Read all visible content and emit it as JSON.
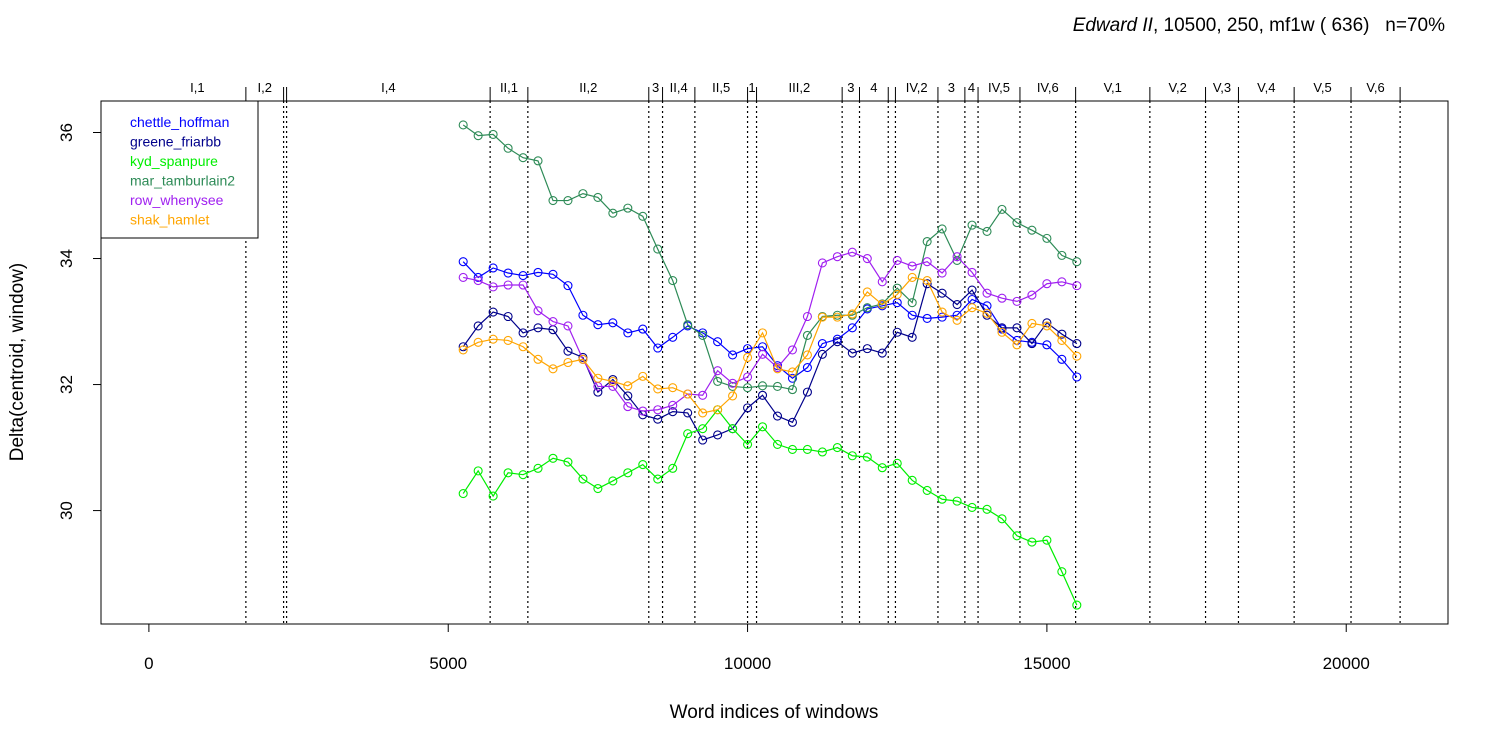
{
  "chart_data": {
    "type": "line",
    "title": {
      "italic": "Edward II",
      "rest": ", 10500, 250, mf1w ( 636)   n=70%"
    },
    "xlabel": "Word indices of windows",
    "ylabel": "Delta(centroid, window)",
    "xlim": [
      -800,
      21700
    ],
    "ylim": [
      28.2,
      36.5
    ],
    "xticks": [
      0,
      5000,
      10000,
      15000,
      20000
    ],
    "xtick_labels": [
      "0",
      "5000",
      "10000",
      "15000",
      "20000"
    ],
    "yticks": [
      30,
      32,
      34,
      36
    ],
    "ytick_labels": [
      "30",
      "32",
      "34",
      "36"
    ],
    "grid": false,
    "legend_position": "top-left",
    "scenes": [
      {
        "label": "I,1",
        "start": 0,
        "end": 1620
      },
      {
        "label": "I,2",
        "start": 1620,
        "end": 2250
      },
      {
        "label": "",
        "start": 2250,
        "end": 2300
      },
      {
        "label": "I,4",
        "start": 2300,
        "end": 5700
      },
      {
        "label": "II,1",
        "start": 5700,
        "end": 6330
      },
      {
        "label": "II,2",
        "start": 6330,
        "end": 8350
      },
      {
        "label": "3",
        "start": 8350,
        "end": 8580
      },
      {
        "label": "II,4",
        "start": 8580,
        "end": 9120
      },
      {
        "label": "II,5",
        "start": 9120,
        "end": 10000
      },
      {
        "label": "1",
        "start": 10000,
        "end": 10150
      },
      {
        "label": "III,2",
        "start": 10150,
        "end": 11580
      },
      {
        "label": "3",
        "start": 11580,
        "end": 11870
      },
      {
        "label": "4",
        "start": 11870,
        "end": 12350
      },
      {
        "label": "",
        "start": 12350,
        "end": 12470
      },
      {
        "label": "IV,2",
        "start": 12470,
        "end": 13180
      },
      {
        "label": "3",
        "start": 13180,
        "end": 13630
      },
      {
        "label": "4",
        "start": 13630,
        "end": 13850
      },
      {
        "label": "IV,5",
        "start": 13850,
        "end": 14550
      },
      {
        "label": "IV,6",
        "start": 14550,
        "end": 15480
      },
      {
        "label": "V,1",
        "start": 15480,
        "end": 16720
      },
      {
        "label": "V,2",
        "start": 16720,
        "end": 17650
      },
      {
        "label": "V,3",
        "start": 17650,
        "end": 18200
      },
      {
        "label": "V,4",
        "start": 18200,
        "end": 19130
      },
      {
        "label": "V,5",
        "start": 19130,
        "end": 20080
      },
      {
        "label": "V,6",
        "start": 20080,
        "end": 20900
      }
    ],
    "x": [
      5250,
      5500,
      5750,
      6000,
      6250,
      6500,
      6750,
      7000,
      7250,
      7500,
      7750,
      8000,
      8250,
      8500,
      8750,
      9000,
      9250,
      9500,
      9750,
      10000,
      10250,
      10500,
      10750,
      11000,
      11250,
      11500,
      11750,
      12000,
      12250,
      12500,
      12750,
      13000,
      13250,
      13500,
      13750,
      14000,
      14250,
      14500,
      14750,
      15000,
      15250,
      15500
    ],
    "series": [
      {
        "name": "chettle_hoffman",
        "color": "#0000ff",
        "values": [
          33.95,
          33.7,
          33.85,
          33.77,
          33.73,
          33.78,
          33.75,
          33.57,
          33.1,
          32.95,
          32.98,
          32.82,
          32.88,
          32.58,
          32.75,
          32.93,
          32.82,
          32.68,
          32.47,
          32.57,
          32.6,
          32.3,
          32.1,
          32.27,
          32.65,
          32.72,
          32.9,
          33.2,
          33.25,
          33.3,
          33.1,
          33.05,
          33.07,
          33.1,
          33.35,
          33.25,
          32.88,
          32.7,
          32.67,
          32.63,
          32.4,
          32.12
        ]
      },
      {
        "name": "greene_friarbb",
        "color": "#00008b",
        "values": [
          32.6,
          32.93,
          33.15,
          33.08,
          32.82,
          32.9,
          32.87,
          32.53,
          32.43,
          31.88,
          32.08,
          31.82,
          31.52,
          31.45,
          31.57,
          31.55,
          31.12,
          31.2,
          31.3,
          31.63,
          31.83,
          31.5,
          31.4,
          31.88,
          32.48,
          32.68,
          32.5,
          32.57,
          32.5,
          32.83,
          32.75,
          33.6,
          33.45,
          33.27,
          33.5,
          33.1,
          32.9,
          32.9,
          32.65,
          32.98,
          32.8,
          32.65
        ]
      },
      {
        "name": "kyd_spanpure",
        "color": "#00ee00",
        "values": [
          30.27,
          30.63,
          30.23,
          30.6,
          30.57,
          30.67,
          30.83,
          30.77,
          30.5,
          30.35,
          30.47,
          30.6,
          30.73,
          30.5,
          30.67,
          31.22,
          31.3,
          31.6,
          31.3,
          31.05,
          31.33,
          31.05,
          30.97,
          30.97,
          30.93,
          31.0,
          30.87,
          30.85,
          30.68,
          30.75,
          30.48,
          30.32,
          30.18,
          30.15,
          30.05,
          30.02,
          29.87,
          29.6,
          29.5,
          29.53,
          29.03,
          28.5
        ]
      },
      {
        "name": "mar_tamburlain2",
        "color": "#2e8b57",
        "values": [
          36.12,
          35.95,
          35.97,
          35.75,
          35.6,
          35.55,
          34.92,
          34.92,
          35.03,
          34.97,
          34.72,
          34.8,
          34.67,
          34.15,
          33.65,
          32.95,
          32.78,
          32.05,
          31.97,
          31.95,
          31.98,
          31.97,
          31.92,
          32.78,
          33.08,
          33.1,
          33.1,
          33.22,
          33.28,
          33.53,
          33.3,
          34.27,
          34.47,
          33.97,
          34.53,
          34.43,
          34.78,
          34.57,
          34.45,
          34.32,
          34.05,
          33.95
        ]
      },
      {
        "name": "row_whenysee",
        "color": "#a020f0",
        "values": [
          33.7,
          33.65,
          33.55,
          33.58,
          33.58,
          33.17,
          33.0,
          32.93,
          32.4,
          31.97,
          31.97,
          31.65,
          31.58,
          31.6,
          31.67,
          31.85,
          31.83,
          32.22,
          32.02,
          32.12,
          32.48,
          32.27,
          32.55,
          33.08,
          33.93,
          34.03,
          34.1,
          34.0,
          33.63,
          33.97,
          33.88,
          33.95,
          33.77,
          34.03,
          33.78,
          33.45,
          33.37,
          33.32,
          33.42,
          33.6,
          33.63,
          33.57
        ]
      },
      {
        "name": "shak_hamlet",
        "color": "#ffa500",
        "values": [
          32.55,
          32.67,
          32.72,
          32.7,
          32.6,
          32.4,
          32.25,
          32.35,
          32.4,
          32.1,
          32.05,
          31.98,
          32.13,
          31.93,
          31.95,
          31.85,
          31.55,
          31.6,
          31.82,
          32.43,
          32.82,
          32.25,
          32.2,
          32.47,
          33.07,
          33.07,
          33.12,
          33.47,
          33.27,
          33.43,
          33.7,
          33.65,
          33.15,
          33.02,
          33.22,
          33.13,
          32.83,
          32.63,
          32.97,
          32.93,
          32.7,
          32.45
        ]
      }
    ]
  }
}
